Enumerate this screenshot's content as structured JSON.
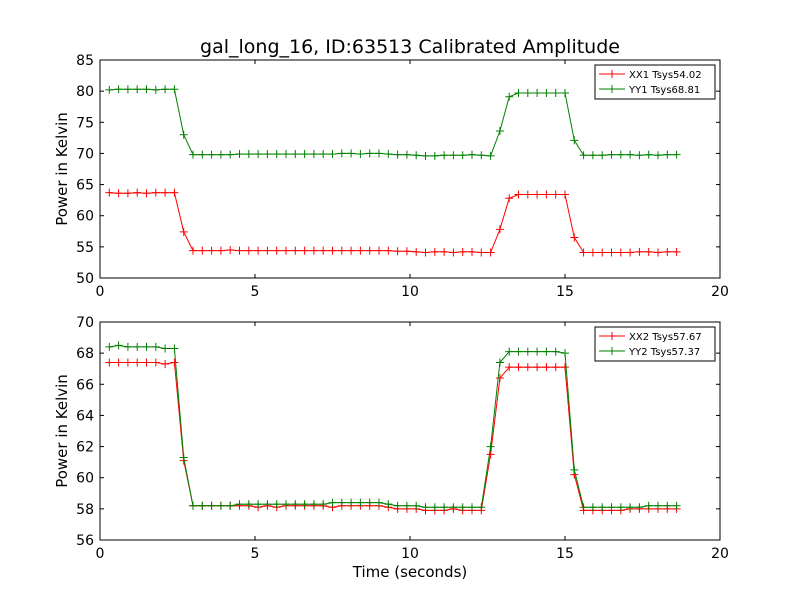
{
  "title": "gal_long_16, ID:63513 Calibrated Amplitude",
  "chart_data": [
    {
      "type": "line",
      "ylabel": "Power in Kelvin",
      "xlabel": "",
      "xlim": [
        0,
        20
      ],
      "ylim": [
        50,
        85
      ],
      "xticks": [
        0,
        5,
        10,
        15,
        20
      ],
      "yticks": [
        50,
        55,
        60,
        65,
        70,
        75,
        80,
        85
      ],
      "grid": false,
      "legend": "top-right",
      "x": [
        0.3,
        0.6,
        0.9,
        1.2,
        1.5,
        1.8,
        2.1,
        2.4,
        2.7,
        3.0,
        3.3,
        3.6,
        3.9,
        4.2,
        4.5,
        4.8,
        5.1,
        5.4,
        5.7,
        6.0,
        6.3,
        6.6,
        6.9,
        7.2,
        7.5,
        7.8,
        8.1,
        8.4,
        8.7,
        9.0,
        9.3,
        9.6,
        9.9,
        10.2,
        10.5,
        10.8,
        11.1,
        11.4,
        11.7,
        12.0,
        12.3,
        12.6,
        12.9,
        13.2,
        13.5,
        13.8,
        14.1,
        14.4,
        14.7,
        15.0,
        15.3,
        15.6,
        15.9,
        16.2,
        16.5,
        16.8,
        17.1,
        17.4,
        17.7,
        18.0,
        18.3,
        18.6
      ],
      "series": [
        {
          "name": "XX1 Tsys54.02",
          "color": "#ff0000",
          "values": [
            63.7,
            63.6,
            63.6,
            63.7,
            63.6,
            63.7,
            63.7,
            63.7,
            57.4,
            54.4,
            54.4,
            54.4,
            54.4,
            54.5,
            54.4,
            54.4,
            54.4,
            54.4,
            54.4,
            54.4,
            54.4,
            54.4,
            54.4,
            54.4,
            54.4,
            54.4,
            54.4,
            54.4,
            54.4,
            54.4,
            54.4,
            54.3,
            54.3,
            54.2,
            54.1,
            54.2,
            54.2,
            54.1,
            54.2,
            54.2,
            54.1,
            54.1,
            57.8,
            62.8,
            63.4,
            63.4,
            63.4,
            63.4,
            63.4,
            63.4,
            56.5,
            54.1,
            54.1,
            54.1,
            54.1,
            54.1,
            54.1,
            54.2,
            54.2,
            54.1,
            54.2,
            54.2
          ]
        },
        {
          "name": "YY1 Tsys68.81",
          "color": "#008000",
          "values": [
            80.2,
            80.3,
            80.3,
            80.3,
            80.3,
            80.2,
            80.3,
            80.3,
            73.0,
            69.8,
            69.8,
            69.8,
            69.8,
            69.8,
            69.9,
            69.9,
            69.9,
            69.9,
            69.9,
            69.9,
            69.9,
            69.9,
            69.9,
            69.9,
            69.9,
            70.0,
            70.0,
            69.9,
            70.0,
            70.0,
            69.9,
            69.8,
            69.8,
            69.7,
            69.6,
            69.6,
            69.7,
            69.7,
            69.7,
            69.8,
            69.7,
            69.6,
            73.6,
            79.1,
            79.7,
            79.7,
            79.7,
            79.7,
            79.7,
            79.7,
            72.1,
            69.7,
            69.7,
            69.7,
            69.8,
            69.8,
            69.8,
            69.7,
            69.8,
            69.7,
            69.8,
            69.8
          ]
        }
      ]
    },
    {
      "type": "line",
      "ylabel": "Power in Kelvin",
      "xlabel": "Time (seconds)",
      "xlim": [
        0,
        20
      ],
      "ylim": [
        56,
        70
      ],
      "xticks": [
        0,
        5,
        10,
        15,
        20
      ],
      "yticks": [
        56,
        58,
        60,
        62,
        64,
        66,
        68,
        70
      ],
      "grid": false,
      "legend": "top-right",
      "x": [
        0.3,
        0.6,
        0.9,
        1.2,
        1.5,
        1.8,
        2.1,
        2.4,
        2.7,
        3.0,
        3.3,
        3.6,
        3.9,
        4.2,
        4.5,
        4.8,
        5.1,
        5.4,
        5.7,
        6.0,
        6.3,
        6.6,
        6.9,
        7.2,
        7.5,
        7.8,
        8.1,
        8.4,
        8.7,
        9.0,
        9.3,
        9.6,
        9.9,
        10.2,
        10.5,
        10.8,
        11.1,
        11.4,
        11.7,
        12.0,
        12.3,
        12.6,
        12.9,
        13.2,
        13.5,
        13.8,
        14.1,
        14.4,
        14.7,
        15.0,
        15.3,
        15.6,
        15.9,
        16.2,
        16.5,
        16.8,
        17.1,
        17.4,
        17.7,
        18.0,
        18.3,
        18.6
      ],
      "series": [
        {
          "name": "XX2 Tsys57.67",
          "color": "#ff0000",
          "values": [
            67.4,
            67.4,
            67.4,
            67.4,
            67.4,
            67.4,
            67.3,
            67.4,
            61.1,
            58.2,
            58.2,
            58.2,
            58.2,
            58.2,
            58.2,
            58.2,
            58.1,
            58.2,
            58.1,
            58.2,
            58.2,
            58.2,
            58.2,
            58.2,
            58.1,
            58.2,
            58.2,
            58.2,
            58.2,
            58.2,
            58.1,
            58.0,
            58.0,
            58.0,
            57.9,
            57.9,
            57.9,
            58.0,
            57.9,
            57.9,
            57.9,
            61.5,
            66.4,
            67.1,
            67.1,
            67.1,
            67.1,
            67.1,
            67.1,
            67.1,
            60.2,
            57.9,
            57.9,
            57.9,
            57.9,
            57.9,
            58.0,
            58.0,
            58.0,
            58.0,
            58.0,
            58.0
          ]
        },
        {
          "name": "YY2 Tsys57.37",
          "color": "#008000",
          "values": [
            68.4,
            68.5,
            68.4,
            68.4,
            68.4,
            68.4,
            68.3,
            68.3,
            61.3,
            58.2,
            58.2,
            58.2,
            58.2,
            58.2,
            58.3,
            58.3,
            58.3,
            58.3,
            58.3,
            58.3,
            58.3,
            58.3,
            58.3,
            58.3,
            58.4,
            58.4,
            58.4,
            58.4,
            58.4,
            58.4,
            58.3,
            58.2,
            58.2,
            58.2,
            58.1,
            58.1,
            58.1,
            58.1,
            58.1,
            58.1,
            58.1,
            62.0,
            67.4,
            68.1,
            68.1,
            68.1,
            68.1,
            68.1,
            68.1,
            68.0,
            60.5,
            58.1,
            58.1,
            58.1,
            58.1,
            58.1,
            58.1,
            58.1,
            58.2,
            58.2,
            58.2,
            58.2
          ]
        }
      ]
    }
  ]
}
